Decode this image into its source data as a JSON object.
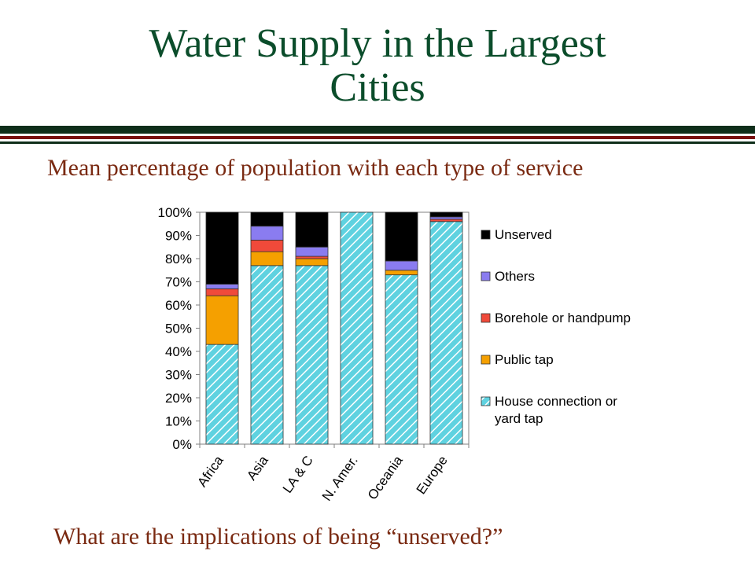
{
  "slide": {
    "title_line1": "Water Supply in the Largest",
    "title_line2": "Cities",
    "subtitle": "Mean percentage of population with each type of service",
    "footer": "What are the implications of being “unserved?”"
  },
  "colors": {
    "title": "#0b4d2b",
    "text": "#7a2a12",
    "rule_dark": "#0f2e1a",
    "rule_red": "#7a1010"
  },
  "chart_data": {
    "type": "bar",
    "stacked": true,
    "categories": [
      "Africa",
      "Asia",
      "LA & C",
      "N. Amer.",
      "Oceania",
      "Europe"
    ],
    "ylim": [
      0,
      100
    ],
    "yticks": [
      "0%",
      "10%",
      "20%",
      "30%",
      "40%",
      "50%",
      "60%",
      "70%",
      "80%",
      "90%",
      "100%"
    ],
    "series": [
      {
        "name": "House connection or yard tap",
        "legend_lines": [
          "House connection or",
          "yard tap"
        ],
        "color": "#5fd2e0",
        "pattern": "hatch",
        "values": [
          43,
          77,
          77,
          100,
          73,
          96
        ]
      },
      {
        "name": "Public tap",
        "legend_lines": [
          "Public tap"
        ],
        "color": "#f5a000",
        "values": [
          21,
          6,
          3,
          0,
          2,
          0
        ]
      },
      {
        "name": "Borehole or handpump",
        "legend_lines": [
          "Borehole or handpump"
        ],
        "color": "#f04a3a",
        "values": [
          3,
          5,
          1,
          0,
          0,
          1
        ]
      },
      {
        "name": "Others",
        "legend_lines": [
          "Others"
        ],
        "color": "#8a7cf0",
        "values": [
          2,
          6,
          4,
          0,
          4,
          1
        ]
      },
      {
        "name": "Unserved",
        "legend_lines": [
          "Unserved"
        ],
        "color": "#000000",
        "values": [
          31,
          6,
          15,
          0,
          21,
          2
        ]
      }
    ],
    "legend_order": [
      "Unserved",
      "Others",
      "Borehole or handpump",
      "Public tap",
      "House connection or yard tap"
    ],
    "legend_position": "right",
    "grid": false
  }
}
